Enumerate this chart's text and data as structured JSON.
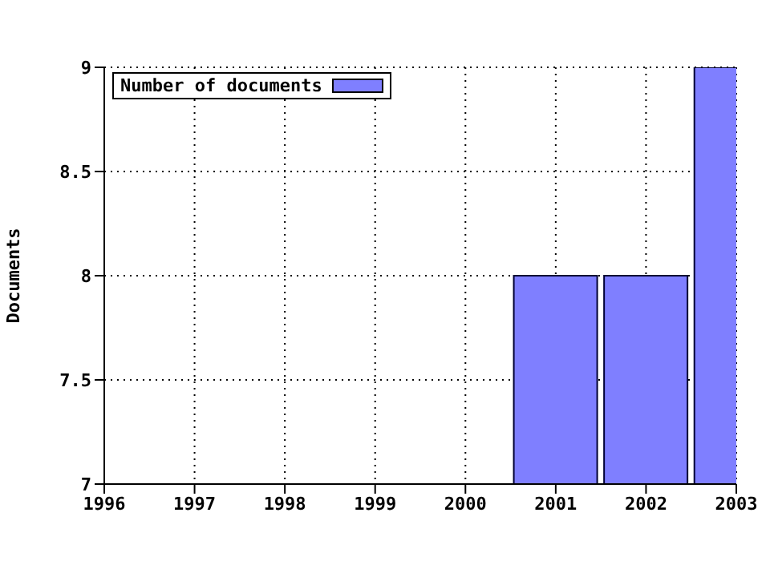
{
  "chart_data": {
    "type": "bar",
    "ylabel": "Documents",
    "x": [
      2001,
      2002,
      2003
    ],
    "series": [
      {
        "name": "Number of documents",
        "color": "#7f7fff",
        "values": [
          8,
          8,
          9
        ]
      }
    ],
    "xlim": [
      1996,
      2003
    ],
    "xticks": [
      1996,
      1997,
      1998,
      1999,
      2000,
      2001,
      2002,
      2003
    ],
    "ylim": [
      7,
      9
    ],
    "yticks": [
      7,
      7.5,
      8,
      8.5,
      9
    ],
    "grid": true,
    "legend": "top left"
  }
}
